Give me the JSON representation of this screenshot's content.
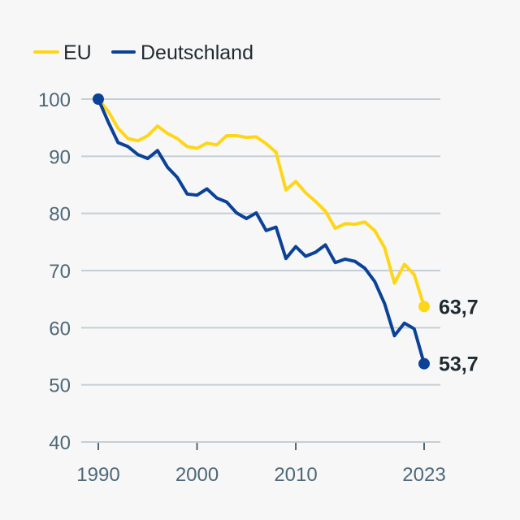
{
  "chart_data": {
    "type": "line",
    "title": "",
    "xlabel": "",
    "ylabel": "",
    "ylim": [
      40,
      100
    ],
    "xlim": [
      1990,
      2023
    ],
    "grid": true,
    "legend_position": "top-left",
    "y_ticks": [
      "100",
      "90",
      "80",
      "70",
      "60",
      "50",
      "40"
    ],
    "y_tick_values": [
      100,
      90,
      80,
      70,
      60,
      50,
      40
    ],
    "x_ticks": [
      "1990",
      "2000",
      "2010",
      "2023"
    ],
    "x_tick_values": [
      1990,
      2000,
      2010,
      2023
    ],
    "x": [
      1990,
      1991,
      1992,
      1993,
      1994,
      1995,
      1996,
      1997,
      1998,
      1999,
      2000,
      2001,
      2002,
      2003,
      2004,
      2005,
      2006,
      2007,
      2008,
      2009,
      2010,
      2011,
      2012,
      2013,
      2014,
      2015,
      2016,
      2017,
      2018,
      2019,
      2020,
      2021,
      2022,
      2023
    ],
    "series": [
      {
        "name": "EU",
        "color": "#ffd617",
        "end_label": "63,7",
        "values": [
          100,
          97.9,
          94.9,
          93.1,
          92.7,
          93.6,
          95.3,
          94.0,
          93.1,
          91.7,
          91.4,
          92.3,
          92.0,
          93.6,
          93.6,
          93.3,
          93.4,
          92.2,
          90.7,
          84.1,
          85.6,
          83.6,
          82.1,
          80.4,
          77.4,
          78.2,
          78.1,
          78.5,
          77.0,
          74.0,
          67.8,
          71.1,
          69.3,
          63.7
        ]
      },
      {
        "name": "Deutschland",
        "color": "#0b4297",
        "end_label": "53,7",
        "values": [
          100,
          96.0,
          92.4,
          91.7,
          90.3,
          89.6,
          91.0,
          88.1,
          86.3,
          83.4,
          83.2,
          84.3,
          82.7,
          82.0,
          80.1,
          79.1,
          80.1,
          77.0,
          77.6,
          72.1,
          74.2,
          72.5,
          73.2,
          74.5,
          71.4,
          72.0,
          71.6,
          70.4,
          68.1,
          64.2,
          58.6,
          60.8,
          59.8,
          53.7
        ]
      }
    ]
  }
}
